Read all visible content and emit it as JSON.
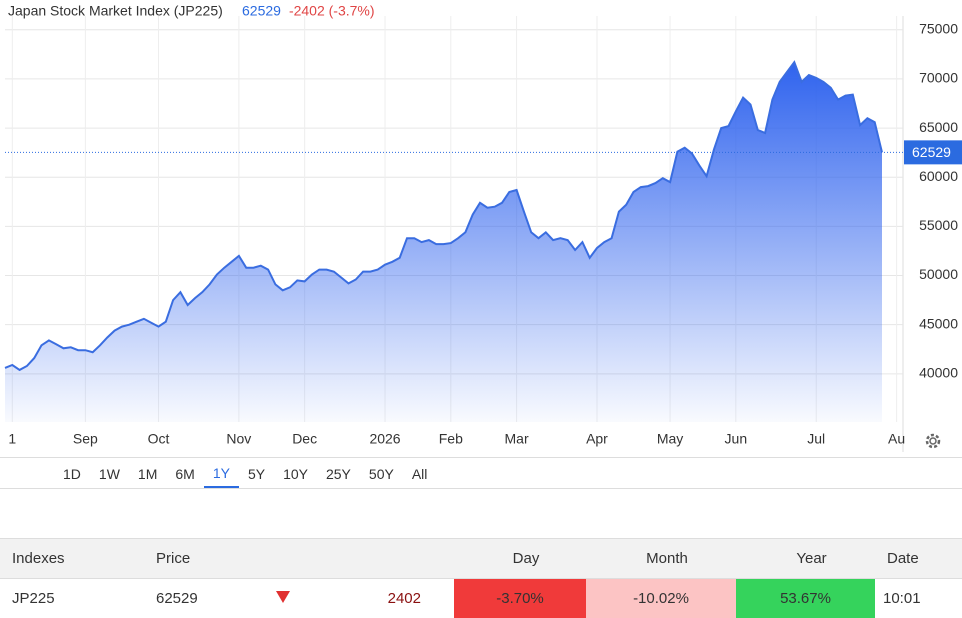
{
  "chart_data": {
    "type": "area",
    "title": "Japan Stock Market Index (JP225)",
    "price": 62529,
    "change_text": "-2402 (-3.7%)",
    "color": "#3a6de0",
    "grid": true,
    "ylim": [
      35100,
      76400
    ],
    "yticks": [
      40000,
      45000,
      50000,
      55000,
      60000,
      65000,
      70000,
      75000
    ],
    "categories": [
      null,
      "1",
      null,
      null,
      null,
      null,
      null,
      null,
      null,
      null,
      null,
      "Sep",
      null,
      null,
      null,
      null,
      null,
      null,
      null,
      null,
      null,
      "Oct",
      null,
      null,
      null,
      null,
      null,
      null,
      null,
      null,
      null,
      null,
      "Nov",
      null,
      null,
      null,
      null,
      null,
      null,
      null,
      null,
      "Dec",
      null,
      null,
      null,
      null,
      null,
      null,
      null,
      null,
      null,
      null,
      "2026",
      null,
      null,
      null,
      null,
      null,
      null,
      null,
      null,
      "Feb",
      null,
      null,
      null,
      null,
      null,
      null,
      null,
      null,
      "Mar",
      null,
      null,
      null,
      null,
      null,
      null,
      null,
      null,
      null,
      null,
      "Apr",
      null,
      null,
      null,
      null,
      null,
      null,
      null,
      null,
      null,
      "May",
      null,
      null,
      null,
      null,
      null,
      null,
      null,
      null,
      "Jun",
      null,
      null,
      null,
      null,
      null,
      null,
      null,
      null,
      null,
      null,
      "Jul",
      null,
      null,
      null,
      null,
      null,
      null,
      null,
      null,
      null,
      null,
      "Au"
    ],
    "values": [
      40600,
      40900,
      40400,
      40800,
      41600,
      42900,
      43400,
      43000,
      42600,
      42700,
      42400,
      42400,
      42200,
      42900,
      43700,
      44400,
      44800,
      45000,
      45300,
      45600,
      45200,
      44800,
      45300,
      47500,
      48300,
      47000,
      47700,
      48300,
      49100,
      50100,
      50800,
      51400,
      52000,
      50800,
      50800,
      51000,
      50600,
      49100,
      48500,
      48800,
      49500,
      49400,
      50100,
      50600,
      50600,
      50400,
      49800,
      49200,
      49600,
      50400,
      50400,
      50600,
      51100,
      51400,
      51800,
      53800,
      53800,
      53400,
      53600,
      53200,
      53200,
      53300,
      53800,
      54400,
      56200,
      57400,
      56900,
      57000,
      57400,
      58500,
      58700,
      56500,
      54400,
      53800,
      54400,
      53600,
      53800,
      53600,
      52600,
      53400,
      51800,
      52800,
      53400,
      53800,
      56500,
      57200,
      58500,
      59000,
      59100,
      59400,
      59900,
      59500,
      62600,
      63000,
      62400,
      61200,
      60100,
      62800,
      65000,
      65200,
      66700,
      68100,
      67400,
      64800,
      64500,
      67900,
      69700,
      70700,
      71700,
      69700,
      70400,
      70100,
      69700,
      69100,
      67900,
      68300,
      68400,
      65300,
      66000,
      65600,
      62529,
      null,
      null
    ]
  },
  "ranges": {
    "buttons": [
      "1D",
      "1W",
      "1M",
      "6M",
      "1Y",
      "5Y",
      "10Y",
      "25Y",
      "50Y",
      "All"
    ],
    "active": 4
  },
  "table": {
    "header": [
      "Indexes",
      "Price",
      "Day",
      "Month",
      "Year",
      "Date"
    ],
    "row": {
      "name": "JP225",
      "price": "62529",
      "change": "2402",
      "day": "-3.70%",
      "month": "-10.02%",
      "year": "53.67%",
      "date": "10:01"
    }
  }
}
